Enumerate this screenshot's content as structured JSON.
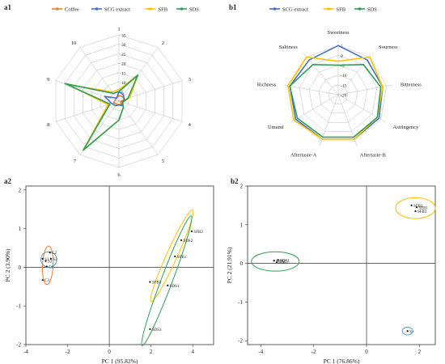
{
  "chart_data": [
    {
      "id": "a1",
      "panel_label": "a1",
      "type": "radar",
      "axes": [
        "1",
        "2",
        "3",
        "4",
        "5",
        "6",
        "7",
        "8",
        "9",
        "10"
      ],
      "range": [
        0,
        35
      ],
      "ticks": [
        0,
        5,
        10,
        15,
        20,
        25,
        30,
        35
      ],
      "legend_position": "top",
      "series": [
        {
          "name": "Coffee",
          "color": "#ed7d31",
          "values": [
            3,
            3,
            3,
            1,
            2,
            2,
            2,
            3,
            2,
            2
          ]
        },
        {
          "name": "SCG extract",
          "color": "#4472c4",
          "values": [
            5,
            4,
            3,
            2,
            3,
            2,
            3,
            4,
            8,
            2
          ]
        },
        {
          "name": "SFB",
          "color": "#ffc000",
          "values": [
            6,
            17,
            6,
            2,
            4,
            10,
            32,
            6,
            28,
            6
          ]
        },
        {
          "name": "SDS",
          "color": "#2f9e55",
          "values": [
            5,
            17,
            5,
            2,
            4,
            10,
            32,
            5,
            30,
            5
          ]
        }
      ]
    },
    {
      "id": "b1",
      "panel_label": "b1",
      "type": "radar",
      "axes": [
        "Sweetness",
        "Sourness",
        "Bitterness",
        "Astringency",
        "Aftertaste-B",
        "Aftertaste-A",
        "Umami",
        "Richness",
        "Saltiness"
      ],
      "range": [
        -20,
        8
      ],
      "ticks": [
        -20,
        -15,
        -10,
        -5,
        0,
        5
      ],
      "legend_position": "top",
      "series": [
        {
          "name": "SCG extract",
          "color": "#4472c4",
          "values": [
            5,
            3,
            3,
            4,
            4,
            4,
            5,
            5,
            3
          ]
        },
        {
          "name": "SFB",
          "color": "#ffc000",
          "values": [
            -3,
            5,
            3,
            3,
            4,
            4,
            6,
            6,
            5
          ]
        },
        {
          "name": "SDS",
          "color": "#2f9e55",
          "values": [
            -5,
            0,
            2,
            3,
            3,
            3,
            4,
            5,
            0
          ]
        }
      ]
    },
    {
      "id": "a2",
      "panel_label": "a2",
      "type": "scatter",
      "xlabel": "PC 1 (95.82%)",
      "ylabel": "PC 2 (3.90%)",
      "xlim": [
        -4,
        5
      ],
      "ylim": [
        -2,
        2.1
      ],
      "xticks": [
        -4,
        -2,
        0,
        2,
        4
      ],
      "yticks": [
        -2,
        -1,
        0,
        1,
        2
      ],
      "points": [
        {
          "label": "C2",
          "x": -2.85,
          "y": 0.38
        },
        {
          "label": "S1",
          "x": -3.2,
          "y": 0.22
        },
        {
          "label": "S2",
          "x": -2.8,
          "y": 0.22
        },
        {
          "label": "S3",
          "x": -3.05,
          "y": 0.16
        },
        {
          "label": "C1",
          "x": -3.0,
          "y": 0.02
        },
        {
          "label": "C3",
          "x": -3.2,
          "y": -0.33
        },
        {
          "label": "SFB2",
          "x": 3.95,
          "y": 0.93
        },
        {
          "label": "SDS2",
          "x": 3.45,
          "y": 0.7
        },
        {
          "label": "SFB1",
          "x": 3.15,
          "y": 0.28
        },
        {
          "label": "SFB3",
          "x": 1.95,
          "y": -0.38
        },
        {
          "label": "SDS1",
          "x": 2.8,
          "y": -0.47
        },
        {
          "label": "SDS3",
          "x": 1.95,
          "y": -1.6
        }
      ],
      "ellipses": [
        {
          "color": "#ed7d31",
          "cx": -2.95,
          "cy": 0.05,
          "rx": 0.5,
          "ry": 0.25,
          "angle_deg": 85
        },
        {
          "color": "#4aa3c8",
          "cx": -2.9,
          "cy": 0.2,
          "rx": 0.38,
          "ry": 0.2,
          "angle_deg": 0
        },
        {
          "color": "#ffc000",
          "cx": 3.0,
          "cy": 0.3,
          "rx": 1.55,
          "ry": 0.18,
          "angle_deg": 50
        },
        {
          "color": "#2f9e55",
          "cx": 2.75,
          "cy": -0.35,
          "rx": 2.05,
          "ry": 0.2,
          "angle_deg": 55
        }
      ]
    },
    {
      "id": "b2",
      "panel_label": "b2",
      "type": "scatter",
      "xlabel": "PC 1 (76.86%)",
      "ylabel": "PC 2 (21.91%)",
      "xlim": [
        -4.5,
        2.6
      ],
      "ylim": [
        -2.1,
        2
      ],
      "xticks": [
        -4,
        -2,
        0,
        2
      ],
      "yticks": [
        -2,
        -1,
        0,
        1,
        2
      ],
      "points": [
        {
          "label": "SFB2",
          "x": 1.7,
          "y": 1.5
        },
        {
          "label": "SFB1",
          "x": 1.9,
          "y": 1.45
        },
        {
          "label": "SFB3",
          "x": 1.85,
          "y": 1.35
        },
        {
          "label": "SDS2",
          "x": -3.5,
          "y": 0.07
        },
        {
          "label": "SDS1",
          "x": -3.35,
          "y": 0.09
        },
        {
          "label": "SDS3",
          "x": -3.4,
          "y": 0.03
        },
        {
          "label": "S+",
          "x": 1.55,
          "y": -1.75
        }
      ],
      "ellipses": [
        {
          "color": "#ffc000",
          "cx": 1.85,
          "cy": 1.43,
          "rx": 0.75,
          "ry": 0.27,
          "angle_deg": 0
        },
        {
          "color": "#2f9e55",
          "cx": -3.45,
          "cy": 0.05,
          "rx": 0.9,
          "ry": 0.25,
          "angle_deg": 0
        },
        {
          "color": "#4aa3c8",
          "cx": 1.55,
          "cy": -1.75,
          "rx": 0.2,
          "ry": 0.1,
          "angle_deg": 0
        }
      ]
    }
  ]
}
